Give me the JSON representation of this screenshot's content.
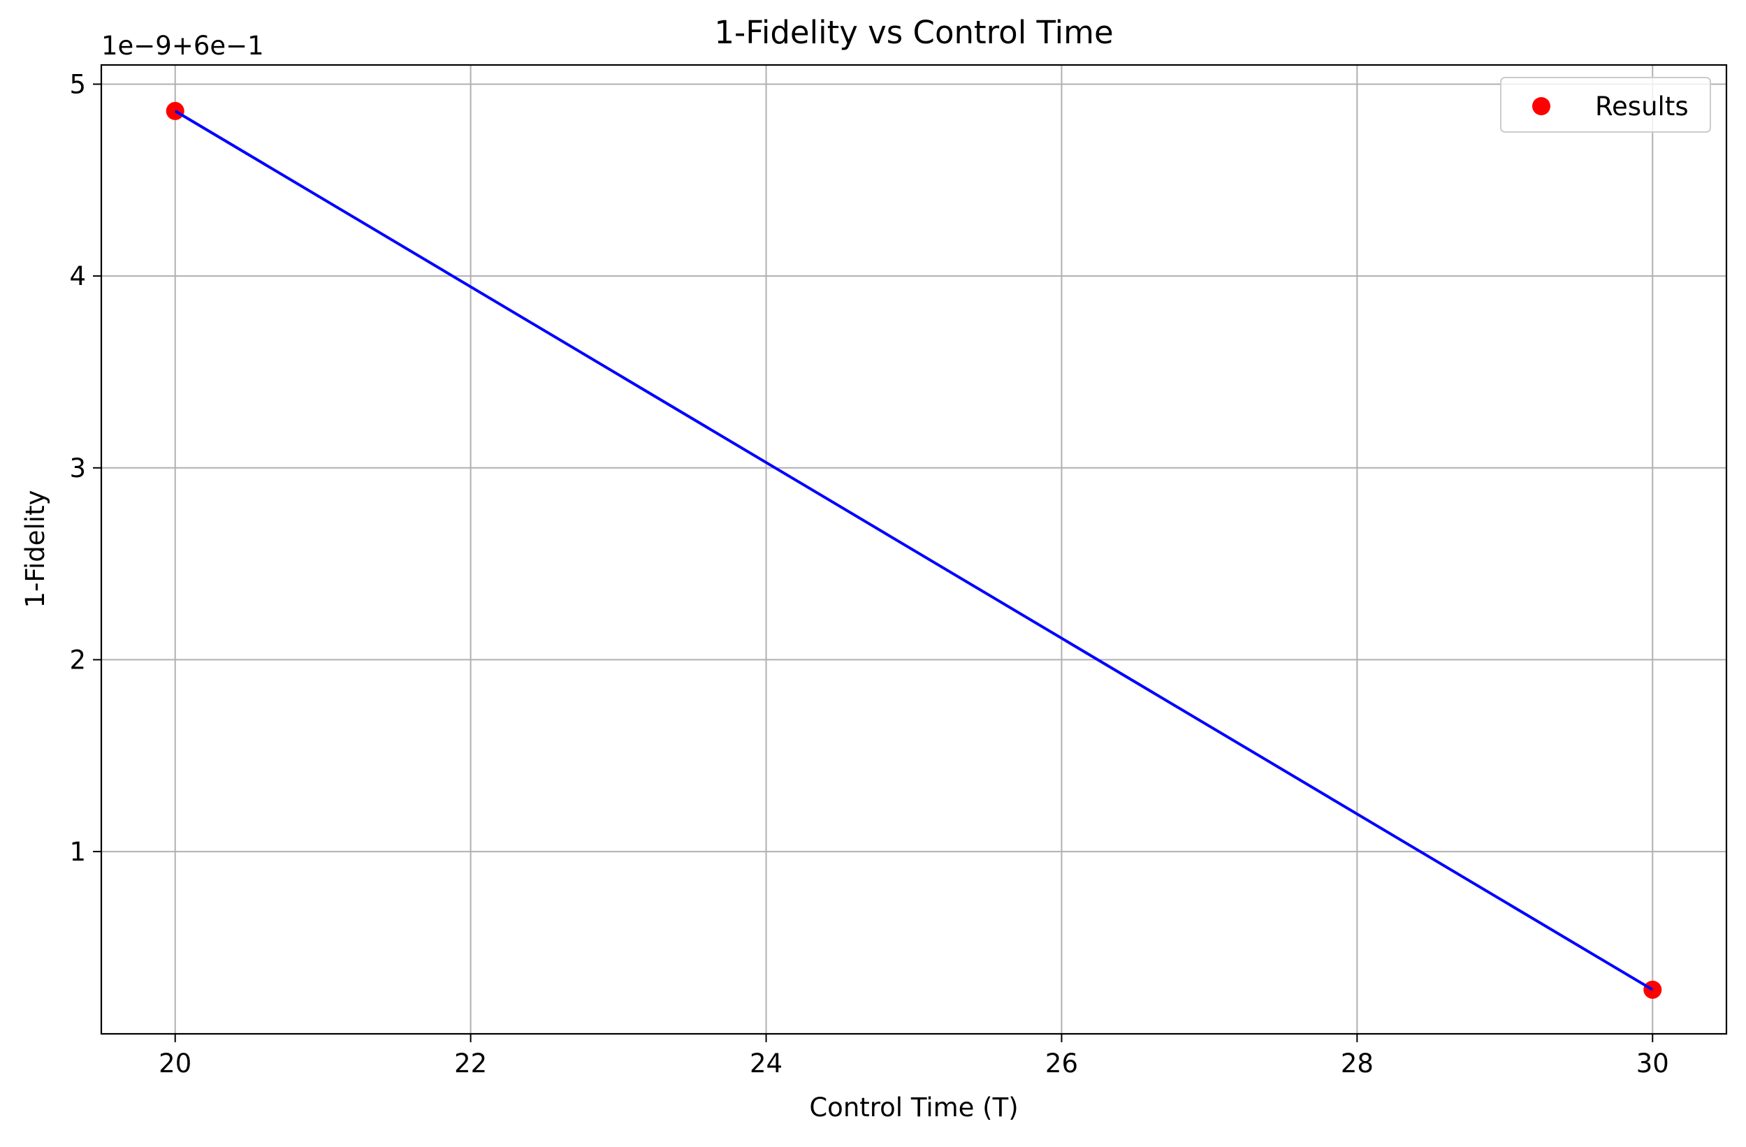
{
  "chart_data": {
    "type": "scatter",
    "title": "1-Fidelity vs Control Time",
    "xlabel": "Control Time (T)",
    "ylabel": "1-Fidelity",
    "offset_label": "1e−9+6e−1",
    "xlim": [
      19.5,
      30.5
    ],
    "ylim": [
      0.05,
      5.1
    ],
    "xticks": [
      20,
      22,
      24,
      26,
      28,
      30
    ],
    "xtick_labels": [
      "20",
      "22",
      "24",
      "26",
      "28",
      "30"
    ],
    "yticks": [
      1,
      2,
      3,
      4,
      5
    ],
    "ytick_labels": [
      "1",
      "2",
      "3",
      "4",
      "5"
    ],
    "grid": true,
    "legend_position": "top-right",
    "series": [
      {
        "name": "Results",
        "kind": "scatter",
        "color": "#ff0000",
        "x": [
          20,
          30
        ],
        "y": [
          4.86,
          0.28
        ]
      },
      {
        "kind": "line",
        "color": "#0000ff",
        "x": [
          20,
          30
        ],
        "y": [
          4.86,
          0.28
        ]
      }
    ]
  }
}
